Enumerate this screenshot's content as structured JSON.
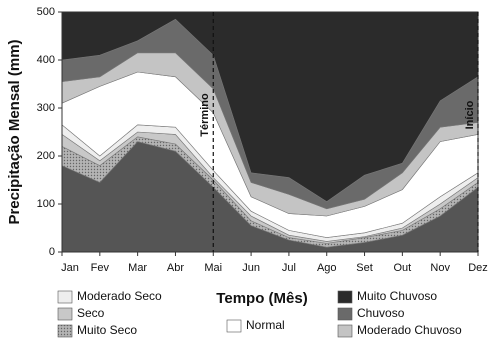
{
  "chart_data": {
    "type": "stacked-area",
    "y_label": "Precipitação Mensal (mm)",
    "x_label": "Tempo (Mês)",
    "categories": [
      "Jan",
      "Fev",
      "Mar",
      "Abr",
      "Mai",
      "Jun",
      "Jul",
      "Ago",
      "Set",
      "Out",
      "Nov",
      "Dez"
    ],
    "ylim": [
      0,
      500
    ],
    "yticks": [
      0,
      100,
      200,
      300,
      400,
      500
    ],
    "series": [
      {
        "color": "#555555",
        "values": [
          180,
          145,
          230,
          210,
          135,
          55,
          25,
          10,
          20,
          35,
          75,
          135
        ]
      },
      {
        "name": "Muito Seco",
        "color": "#b4b4b4",
        "pattern": "dots",
        "values": [
          40,
          35,
          10,
          15,
          15,
          10,
          5,
          8,
          10,
          10,
          15,
          10
        ]
      },
      {
        "name": "Seco",
        "color": "#c8c8c8",
        "values": [
          25,
          10,
          10,
          20,
          5,
          10,
          5,
          4,
          2,
          5,
          10,
          10
        ]
      },
      {
        "name": "Moderado Seco",
        "color": "#eeeeee",
        "values": [
          20,
          10,
          15,
          15,
          15,
          10,
          10,
          8,
          8,
          10,
          15,
          10
        ]
      },
      {
        "name": "Normal",
        "color": "#ffffff",
        "values": [
          45,
          145,
          110,
          105,
          120,
          30,
          35,
          45,
          55,
          70,
          115,
          80
        ]
      },
      {
        "name": "Moderado Chuvoso",
        "color": "#c4c4c4",
        "values": [
          45,
          20,
          40,
          50,
          50,
          30,
          40,
          15,
          15,
          35,
          30,
          25
        ]
      },
      {
        "name": "Chuvoso",
        "color": "#6a6a6a",
        "values": [
          45,
          45,
          25,
          70,
          70,
          20,
          35,
          15,
          50,
          20,
          55,
          95
        ]
      },
      {
        "name": "Muito Chuvoso",
        "color": "#2b2b2b",
        "values": [
          100,
          90,
          60,
          15,
          90,
          335,
          345,
          395,
          340,
          315,
          185,
          135
        ]
      }
    ],
    "annotations": [
      {
        "text": "Término",
        "category": "Mai"
      },
      {
        "text": "Início",
        "category": "Dez"
      }
    ]
  }
}
